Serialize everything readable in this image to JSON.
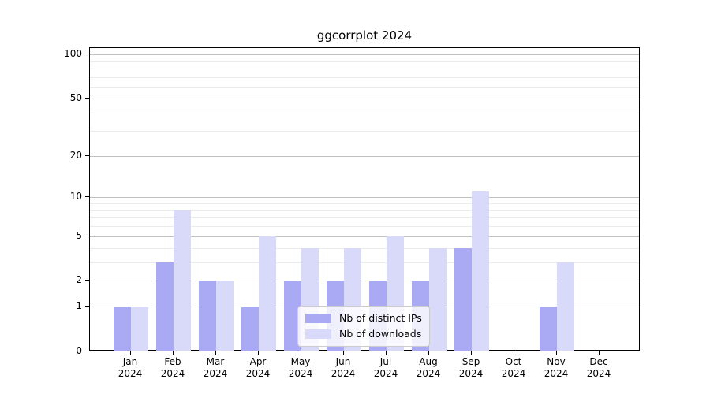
{
  "title": "ggcorrplot 2024",
  "legend": {
    "position": "lower center",
    "items": [
      {
        "label": "Nb of distinct IPs",
        "color": "#a9a9f4"
      },
      {
        "label": "Nb of downloads",
        "color": "#d9d9f9"
      }
    ]
  },
  "axes": {
    "y_tick_labels": [
      "0",
      "1",
      "2",
      "5",
      "10",
      "20",
      "50",
      "100"
    ],
    "x_year_line": "2024"
  },
  "chart_data": {
    "type": "bar",
    "title": "ggcorrplot 2024",
    "categories": [
      "Jan 2024",
      "Feb 2024",
      "Mar 2024",
      "Apr 2024",
      "May 2024",
      "Jun 2024",
      "Jul 2024",
      "Aug 2024",
      "Sep 2024",
      "Oct 2024",
      "Nov 2024",
      "Dec 2024"
    ],
    "series": [
      {
        "name": "Nb of distinct IPs",
        "color": "#a9a9f4",
        "values": [
          1,
          3,
          2,
          1,
          2,
          2,
          2,
          2,
          4,
          0,
          1,
          0
        ]
      },
      {
        "name": "Nb of downloads",
        "color": "#d9d9f9",
        "values": [
          1,
          8,
          2,
          5,
          4,
          4,
          5,
          4,
          11,
          0,
          3,
          0
        ]
      }
    ],
    "xlabel": "",
    "ylabel": "",
    "yscale": "log1p",
    "ylim": [
      0,
      113
    ],
    "yticks_major": [
      0,
      1,
      2,
      5,
      10,
      20,
      50,
      100
    ],
    "yticks_minor": [
      3,
      4,
      6,
      7,
      8,
      9,
      30,
      40,
      60,
      70,
      80,
      90
    ],
    "grid": true,
    "legend_position": "lower center"
  }
}
